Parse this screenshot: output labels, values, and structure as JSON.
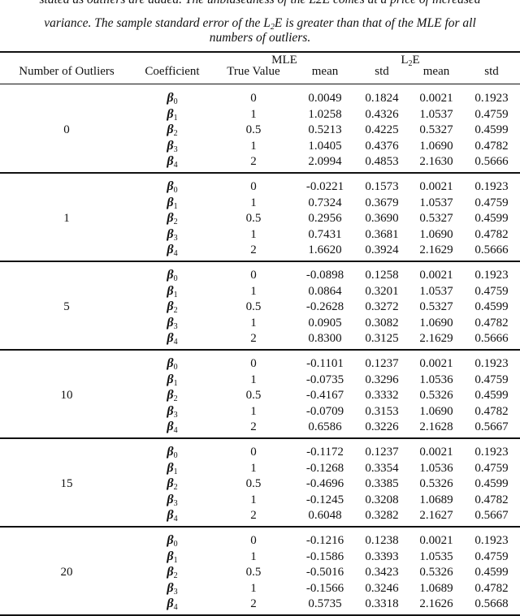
{
  "caption": {
    "line1": "stated as outliers are added. The unbiasedness of the L2E comes at a price of increased",
    "line2_a": "variance. The sample standard error of the L",
    "line2_sub": "2",
    "line2_b": "E is greater than that of the MLE for all",
    "line3": "numbers of outliers."
  },
  "table": {
    "group_headers": {
      "mle": "MLE",
      "l2e_main": "L",
      "l2e_sub": "2",
      "l2e_tail": "E"
    },
    "columns": [
      "Number of Outliers",
      "Coefficient",
      "True Value",
      "mean",
      "std",
      "mean",
      "std"
    ],
    "coefficient_symbol": "β",
    "groups": [
      {
        "outliers": "0",
        "rows": [
          {
            "coef": "0",
            "true": "0",
            "mle_mean": "0.0049",
            "mle_std": "0.1824",
            "l2e_mean": "0.0021",
            "l2e_std": "0.1923"
          },
          {
            "coef": "1",
            "true": "1",
            "mle_mean": "1.0258",
            "mle_std": "0.4326",
            "l2e_mean": "1.0537",
            "l2e_std": "0.4759"
          },
          {
            "coef": "2",
            "true": "0.5",
            "mle_mean": "0.5213",
            "mle_std": "0.4225",
            "l2e_mean": "0.5327",
            "l2e_std": "0.4599"
          },
          {
            "coef": "3",
            "true": "1",
            "mle_mean": "1.0405",
            "mle_std": "0.4376",
            "l2e_mean": "1.0690",
            "l2e_std": "0.4782"
          },
          {
            "coef": "4",
            "true": "2",
            "mle_mean": "2.0994",
            "mle_std": "0.4853",
            "l2e_mean": "2.1630",
            "l2e_std": "0.5666"
          }
        ]
      },
      {
        "outliers": "1",
        "rows": [
          {
            "coef": "0",
            "true": "0",
            "mle_mean": "-0.0221",
            "mle_std": "0.1573",
            "l2e_mean": "0.0021",
            "l2e_std": "0.1923"
          },
          {
            "coef": "1",
            "true": "1",
            "mle_mean": "0.7324",
            "mle_std": "0.3679",
            "l2e_mean": "1.0537",
            "l2e_std": "0.4759"
          },
          {
            "coef": "2",
            "true": "0.5",
            "mle_mean": "0.2956",
            "mle_std": "0.3690",
            "l2e_mean": "0.5327",
            "l2e_std": "0.4599"
          },
          {
            "coef": "3",
            "true": "1",
            "mle_mean": "0.7431",
            "mle_std": "0.3681",
            "l2e_mean": "1.0690",
            "l2e_std": "0.4782"
          },
          {
            "coef": "4",
            "true": "2",
            "mle_mean": "1.6620",
            "mle_std": "0.3924",
            "l2e_mean": "2.1629",
            "l2e_std": "0.5666"
          }
        ]
      },
      {
        "outliers": "5",
        "rows": [
          {
            "coef": "0",
            "true": "0",
            "mle_mean": "-0.0898",
            "mle_std": "0.1258",
            "l2e_mean": "0.0021",
            "l2e_std": "0.1923"
          },
          {
            "coef": "1",
            "true": "1",
            "mle_mean": "0.0864",
            "mle_std": "0.3201",
            "l2e_mean": "1.0537",
            "l2e_std": "0.4759"
          },
          {
            "coef": "2",
            "true": "0.5",
            "mle_mean": "-0.2628",
            "mle_std": "0.3272",
            "l2e_mean": "0.5327",
            "l2e_std": "0.4599"
          },
          {
            "coef": "3",
            "true": "1",
            "mle_mean": "0.0905",
            "mle_std": "0.3082",
            "l2e_mean": "1.0690",
            "l2e_std": "0.4782"
          },
          {
            "coef": "4",
            "true": "2",
            "mle_mean": "0.8300",
            "mle_std": "0.3125",
            "l2e_mean": "2.1629",
            "l2e_std": "0.5666"
          }
        ]
      },
      {
        "outliers": "10",
        "rows": [
          {
            "coef": "0",
            "true": "0",
            "mle_mean": "-0.1101",
            "mle_std": "0.1237",
            "l2e_mean": "0.0021",
            "l2e_std": "0.1923"
          },
          {
            "coef": "1",
            "true": "1",
            "mle_mean": "-0.0735",
            "mle_std": "0.3296",
            "l2e_mean": "1.0536",
            "l2e_std": "0.4759"
          },
          {
            "coef": "2",
            "true": "0.5",
            "mle_mean": "-0.4167",
            "mle_std": "0.3332",
            "l2e_mean": "0.5326",
            "l2e_std": "0.4599"
          },
          {
            "coef": "3",
            "true": "1",
            "mle_mean": "-0.0709",
            "mle_std": "0.3153",
            "l2e_mean": "1.0690",
            "l2e_std": "0.4782"
          },
          {
            "coef": "4",
            "true": "2",
            "mle_mean": "0.6586",
            "mle_std": "0.3226",
            "l2e_mean": "2.1628",
            "l2e_std": "0.5667"
          }
        ]
      },
      {
        "outliers": "15",
        "rows": [
          {
            "coef": "0",
            "true": "0",
            "mle_mean": "-0.1172",
            "mle_std": "0.1237",
            "l2e_mean": "0.0021",
            "l2e_std": "0.1923"
          },
          {
            "coef": "1",
            "true": "1",
            "mle_mean": "-0.1268",
            "mle_std": "0.3354",
            "l2e_mean": "1.0536",
            "l2e_std": "0.4759"
          },
          {
            "coef": "2",
            "true": "0.5",
            "mle_mean": "-0.4696",
            "mle_std": "0.3385",
            "l2e_mean": "0.5326",
            "l2e_std": "0.4599"
          },
          {
            "coef": "3",
            "true": "1",
            "mle_mean": "-0.1245",
            "mle_std": "0.3208",
            "l2e_mean": "1.0689",
            "l2e_std": "0.4782"
          },
          {
            "coef": "4",
            "true": "2",
            "mle_mean": "0.6048",
            "mle_std": "0.3282",
            "l2e_mean": "2.1627",
            "l2e_std": "0.5667"
          }
        ]
      },
      {
        "outliers": "20",
        "rows": [
          {
            "coef": "0",
            "true": "0",
            "mle_mean": "-0.1216",
            "mle_std": "0.1238",
            "l2e_mean": "0.0021",
            "l2e_std": "0.1923"
          },
          {
            "coef": "1",
            "true": "1",
            "mle_mean": "-0.1586",
            "mle_std": "0.3393",
            "l2e_mean": "1.0535",
            "l2e_std": "0.4759"
          },
          {
            "coef": "2",
            "true": "0.5",
            "mle_mean": "-0.5016",
            "mle_std": "0.3423",
            "l2e_mean": "0.5326",
            "l2e_std": "0.4599"
          },
          {
            "coef": "3",
            "true": "1",
            "mle_mean": "-0.1566",
            "mle_std": "0.3246",
            "l2e_mean": "1.0689",
            "l2e_std": "0.4782"
          },
          {
            "coef": "4",
            "true": "2",
            "mle_mean": "0.5735",
            "mle_std": "0.3318",
            "l2e_mean": "2.1626",
            "l2e_std": "0.5668"
          }
        ]
      }
    ]
  }
}
